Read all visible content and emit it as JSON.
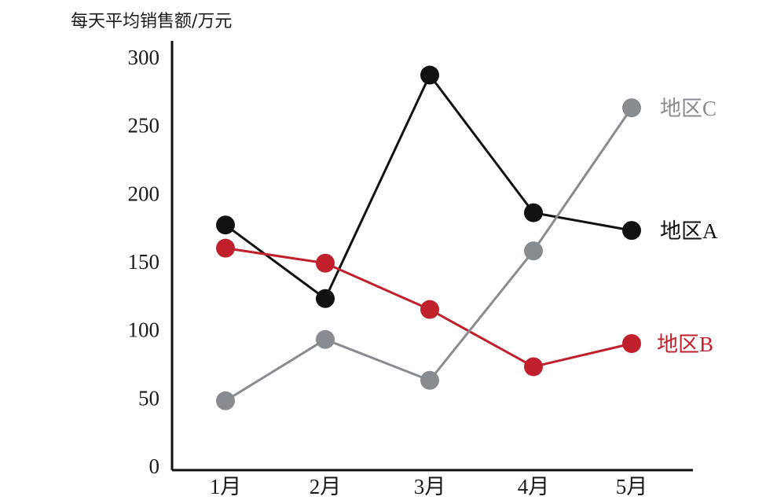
{
  "chart_data": {
    "type": "line",
    "title": "",
    "ylabel": "每天平均销售额/万元",
    "xlabel": "",
    "categories": [
      "1月",
      "2月",
      "3月",
      "4月",
      "5月"
    ],
    "y_ticks": [
      "0",
      "50",
      "100",
      "150",
      "200",
      "250",
      "300"
    ],
    "ylim": [
      0,
      300
    ],
    "grid": false,
    "legend": "inline labels at line ends",
    "series": [
      {
        "name": "地区A",
        "color": "#111111",
        "values": [
          177,
          123,
          287,
          186,
          173
        ]
      },
      {
        "name": "地区B",
        "color": "#c0202c",
        "values": [
          160,
          149,
          115,
          73,
          90
        ]
      },
      {
        "name": "地区C",
        "color": "#888b90",
        "values": [
          48,
          93,
          63,
          158,
          263
        ]
      }
    ]
  }
}
